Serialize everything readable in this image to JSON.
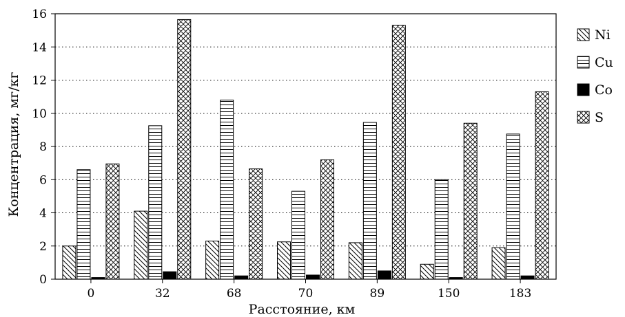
{
  "chart_data": {
    "type": "bar",
    "xlabel": "Расстояние, км",
    "ylabel": "Концентрация, мг/кг",
    "categories": [
      "0",
      "32",
      "68",
      "70",
      "89",
      "150",
      "183"
    ],
    "ylim": [
      0,
      16
    ],
    "yticks": [
      0,
      2,
      4,
      6,
      8,
      10,
      12,
      14,
      16
    ],
    "grid": "horizontal-dotted",
    "legend_position": "right",
    "series": [
      {
        "name": "Ni",
        "pattern": "diagonal-hatch",
        "values": [
          2.0,
          4.1,
          2.3,
          2.25,
          2.2,
          0.9,
          1.9
        ]
      },
      {
        "name": "Cu",
        "pattern": "horizontal-lines",
        "values": [
          6.6,
          9.25,
          10.8,
          5.3,
          9.45,
          6.0,
          8.75
        ]
      },
      {
        "name": "Co",
        "pattern": "solid-black",
        "values": [
          0.1,
          0.45,
          0.2,
          0.25,
          0.5,
          0.1,
          0.2
        ]
      },
      {
        "name": "S",
        "pattern": "crosshatch",
        "values": [
          6.95,
          15.65,
          6.65,
          7.2,
          15.3,
          9.4,
          11.3
        ]
      }
    ]
  }
}
